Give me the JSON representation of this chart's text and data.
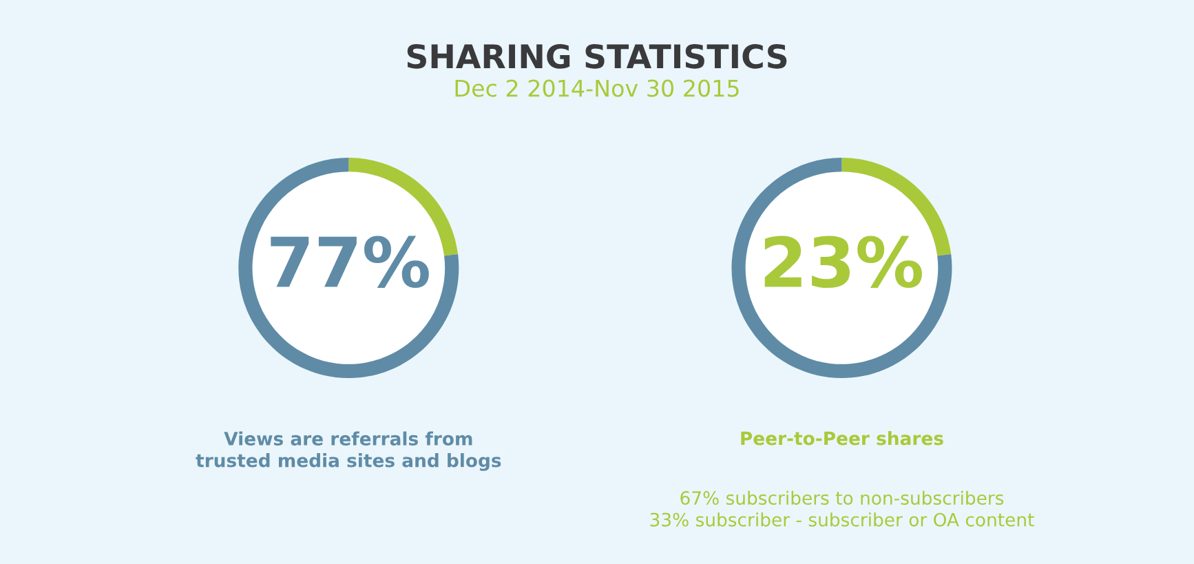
{
  "chart_data": [
    {
      "type": "donut",
      "title": "SHARING STATISTICS",
      "subtitle": "Dec 2 2014-Nov 30 2015",
      "categories": [
        null,
        null
      ],
      "values": [
        23,
        77
      ],
      "colors": [
        "#a9c93a",
        "#5f8ba6"
      ],
      "value_labels": [
        null,
        "77%"
      ],
      "annotations": [
        "Views are referrals from\ntrusted media sites and blogs"
      ]
    },
    {
      "type": "donut",
      "categories": [
        null,
        null
      ],
      "values": [
        23,
        77
      ],
      "colors": [
        "#a9c93a",
        "#5f8ba6"
      ],
      "value_labels": [
        "23%",
        null
      ],
      "annotations": [
        "Peer-to-Peer shares",
        "67% subscribers to non-subscribers\n33% subscriber - subscriber or OA content"
      ]
    }
  ]
}
